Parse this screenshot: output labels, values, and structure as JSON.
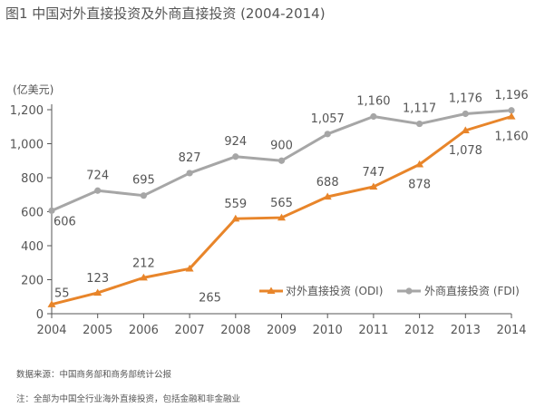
{
  "figure": {
    "title": "图1 中国对外直接投资及外商直接投资 (2004-2014)",
    "source_note": "数据来源：中国商务部和商务部统计公报",
    "footnote": "注：全部为中国全行业海外直接投资，包括金融和非金融业"
  },
  "colors": {
    "odi": "#E8852A",
    "fdi": "#A6A6A6",
    "axis": "#555555",
    "text": "#555555"
  },
  "chart_data": {
    "type": "line",
    "title": "图1 中国对外直接投资及外商直接投资 (2004-2014)",
    "ylabel": "(亿美元)",
    "xlabel": "",
    "categories": [
      "2004",
      "2005",
      "2006",
      "2007",
      "2008",
      "2009",
      "2010",
      "2011",
      "2012",
      "2013",
      "2014"
    ],
    "ylim": [
      0,
      1200
    ],
    "yticks": [
      0,
      200,
      400,
      600,
      800,
      1000,
      1200
    ],
    "ytick_labels": [
      "0",
      "200",
      "400",
      "600",
      "800",
      "1,000",
      "1,200"
    ],
    "legend_position": "bottom-right",
    "grid": false,
    "series": [
      {
        "key": "odi",
        "name": "对外直接投资 (ODI)",
        "marker": "triangle",
        "values": [
          55,
          123,
          212,
          265,
          559,
          565,
          688,
          747,
          878,
          1078,
          1160
        ],
        "labels": [
          "55",
          "123",
          "212",
          "265",
          "559",
          "565",
          "688",
          "747",
          "878",
          "1,078",
          "1,160"
        ]
      },
      {
        "key": "fdi",
        "name": "外商直接投资 (FDI)",
        "marker": "circle",
        "values": [
          606,
          724,
          695,
          827,
          924,
          900,
          1057,
          1160,
          1117,
          1176,
          1196
        ],
        "labels": [
          "606",
          "724",
          "695",
          "827",
          "924",
          "900",
          "1,057",
          "1,160",
          "1,117",
          "1,176",
          "1,196"
        ]
      }
    ]
  }
}
